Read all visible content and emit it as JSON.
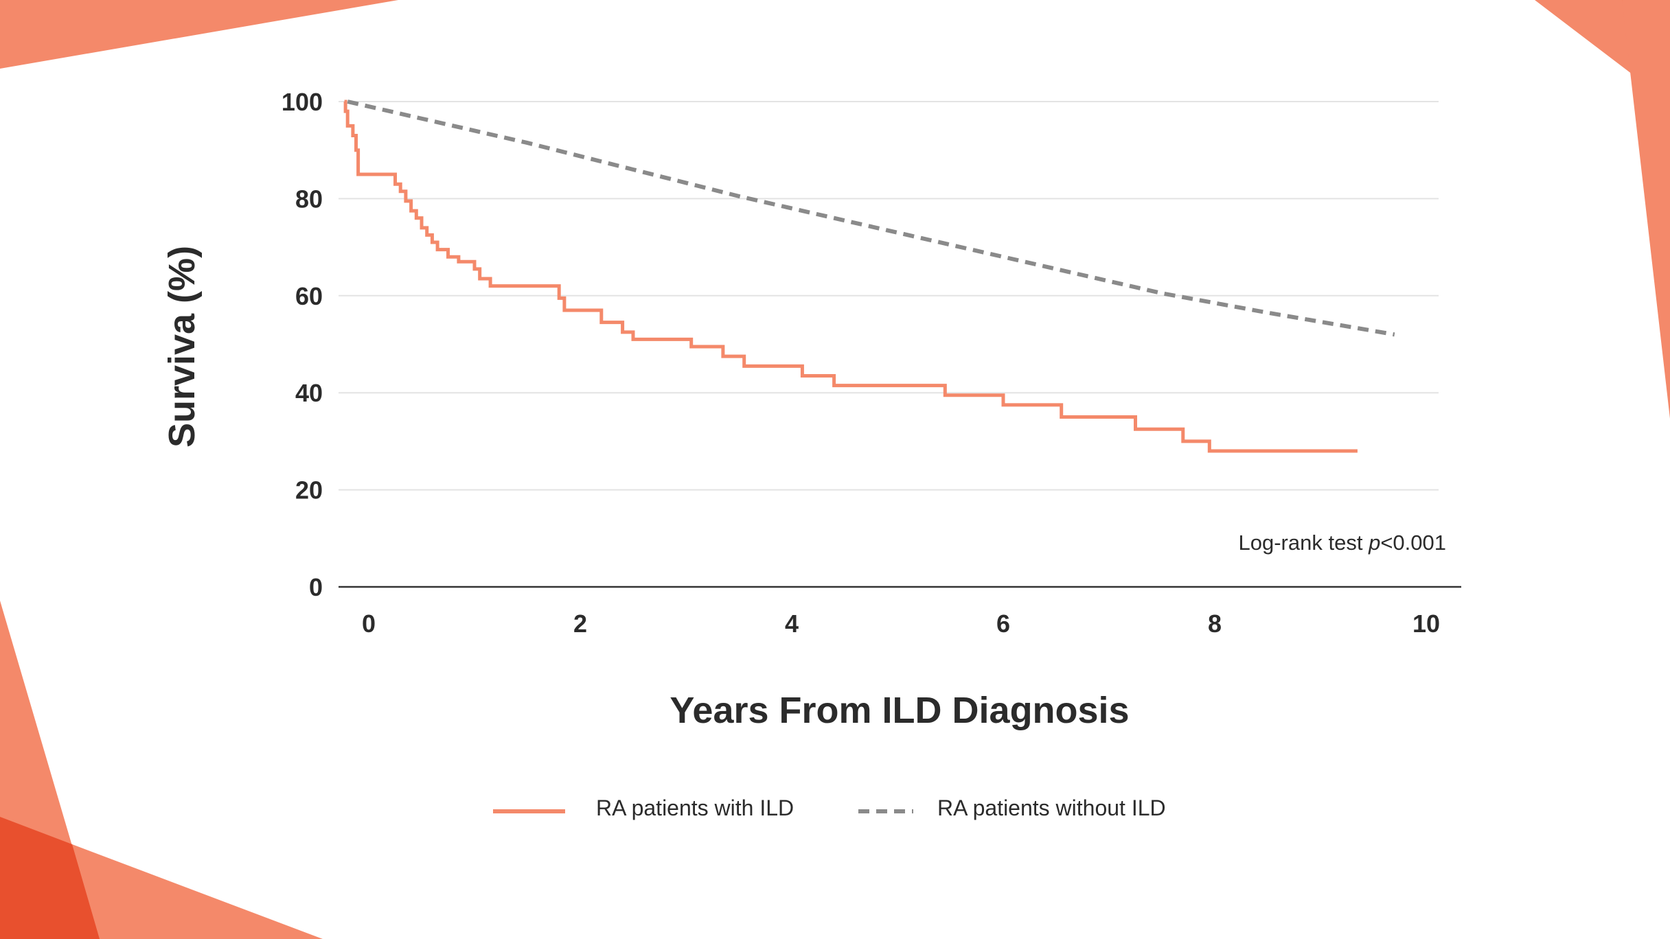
{
  "colors": {
    "accent_light": "#f4896a",
    "accent_dark": "#e8502e",
    "with_ild": "#f4896a",
    "without_ild": "#8a8a8a",
    "grid": "#e3e3e3",
    "axis": "#333333",
    "text": "#2b2b2b"
  },
  "chart_data": {
    "type": "line",
    "title": "",
    "xlabel": "Years From ILD Diagnosis",
    "ylabel": "Surviva (%)",
    "xlim": [
      -0.3,
      10.3
    ],
    "ylim": [
      0,
      100
    ],
    "xticks": [
      "0",
      "2",
      "4",
      "6",
      "8",
      "10"
    ],
    "yticks": [
      "0",
      "20",
      "40",
      "60",
      "80",
      "100"
    ],
    "grid": true,
    "legend_position": "bottom",
    "annotation": {
      "prefix": "Log-rank test ",
      "italic": "p",
      "suffix": "<0.001"
    },
    "series": [
      {
        "name": "RA patients with ILD",
        "style": "step",
        "color": "#f4896a",
        "x": [
          -0.23,
          -0.22,
          -0.2,
          -0.15,
          -0.12,
          -0.1,
          0.25,
          0.3,
          0.35,
          0.4,
          0.45,
          0.5,
          0.55,
          0.6,
          0.65,
          0.7,
          0.75,
          0.85,
          1.0,
          1.05,
          1.15,
          1.2,
          1.25,
          1.8,
          1.85,
          2.2,
          2.4,
          2.5,
          3.05,
          3.35,
          3.55,
          4.1,
          4.4,
          5.45,
          6.0,
          6.55,
          7.25,
          7.7,
          7.95,
          9.35
        ],
        "y": [
          100,
          98,
          95,
          93,
          90,
          85,
          83,
          81.5,
          79.5,
          77.5,
          76,
          74,
          72.5,
          71,
          69.5,
          69.5,
          68,
          67,
          65.5,
          63.5,
          62,
          62,
          62,
          59.5,
          57,
          54.5,
          52.5,
          51,
          49.5,
          47.5,
          45.5,
          43.5,
          41.5,
          39.5,
          37.5,
          35,
          32.5,
          30,
          28,
          28
        ]
      },
      {
        "name": "RA patients without ILD",
        "style": "dashed",
        "color": "#8a8a8a",
        "x": [
          -0.2,
          0.5,
          1.5,
          2.5,
          3.5,
          4.5,
          5.5,
          6.5,
          7.5,
          8.5,
          9.7
        ],
        "y": [
          100,
          96.5,
          91.5,
          86,
          80.5,
          75.5,
          70.5,
          65.5,
          60.5,
          56.5,
          52
        ]
      }
    ]
  }
}
